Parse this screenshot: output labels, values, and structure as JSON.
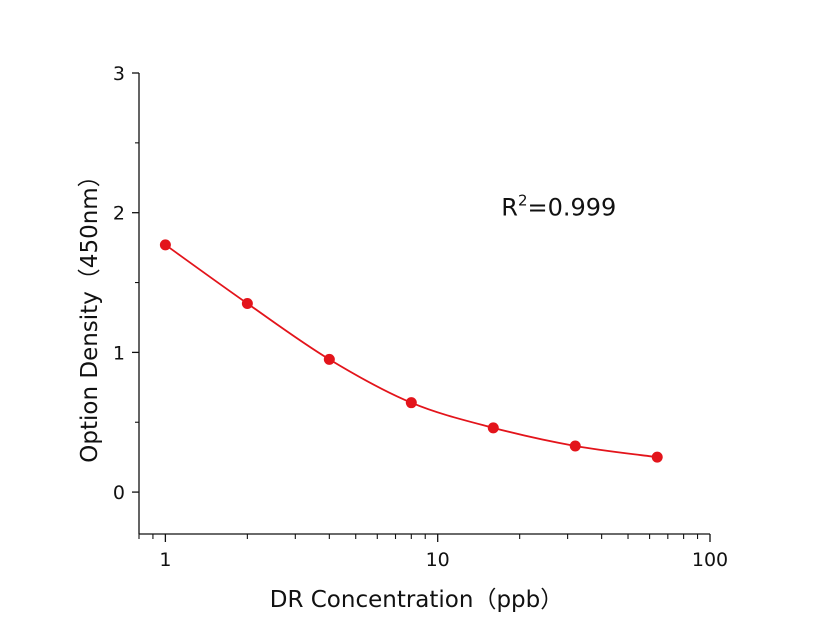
{
  "chart_data": {
    "type": "scatter",
    "title": "",
    "xlabel": "DR Concentration（ppb）",
    "ylabel": "Option Density（450nm）",
    "x_scale": "log",
    "xlim": [
      0.8,
      100
    ],
    "ylim": [
      -0.3,
      3
    ],
    "x_ticks": [
      1,
      10,
      100
    ],
    "x_tick_labels": [
      "1",
      "10",
      "100"
    ],
    "y_ticks": [
      0,
      1,
      2,
      3
    ],
    "y_tick_labels": [
      "0",
      "1",
      "2",
      "3"
    ],
    "grid": false,
    "legend": "none",
    "series": [
      {
        "color": "#e3141b",
        "marker": "circle",
        "fit_line": true,
        "x": [
          1,
          2,
          4,
          8,
          16,
          32,
          64
        ],
        "y": [
          1.77,
          1.35,
          0.95,
          0.64,
          0.46,
          0.33,
          0.25
        ]
      }
    ],
    "annotation": {
      "base": "R",
      "superscript": "2",
      "rest": "=0.999",
      "x": 16,
      "y": 2.05
    }
  }
}
